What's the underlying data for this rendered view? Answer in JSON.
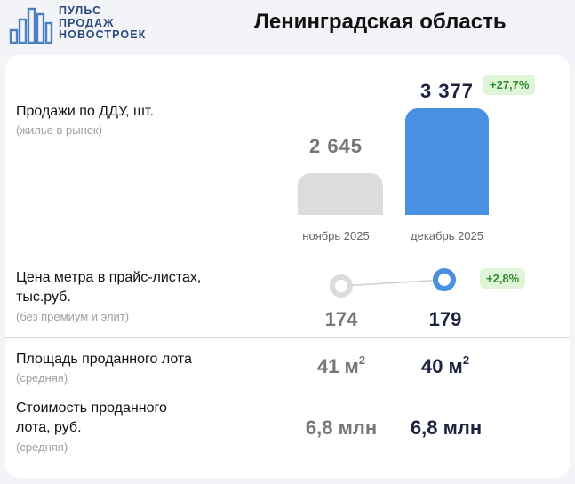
{
  "logo": {
    "line1": "ПУЛЬС",
    "line2": "ПРОДАЖ",
    "line3": "НОВОСТРОЕК"
  },
  "title": "Ленинградская область",
  "colors": {
    "prev_bar": "#dcdcdc",
    "curr_bar": "#4a90e2",
    "badge_bg": "#dff5d8",
    "badge_text": "#2f8a2f",
    "dark_value": "#1c2240"
  },
  "sales": {
    "label": "Продажи по ДДУ, шт.",
    "sublabel": "(жилье в рынок)",
    "prev_value": "2 645",
    "curr_value": "3 377",
    "prev_month": "ноябрь 2025",
    "curr_month": "декабрь 2025",
    "change": "+27,7%"
  },
  "chart_data": {
    "type": "bar",
    "categories": [
      "ноябрь 2025",
      "декабрь 2025"
    ],
    "values": [
      2645,
      3377
    ],
    "title": "Продажи по ДДУ, шт."
  },
  "price": {
    "label_line1": "Цена метра в прайс-листах,",
    "label_line2": "тыс.руб.",
    "sublabel": "(без премиум и элит)",
    "prev_value": "174",
    "curr_value": "179",
    "change": "+2,8%"
  },
  "area": {
    "label": "Площадь проданного лота",
    "sublabel": "(средняя)",
    "prev_value": "41 м",
    "curr_value": "40 м",
    "unit_sup": "2"
  },
  "cost": {
    "label_line1": "Стоимость проданного",
    "label_line2": "лота, руб.",
    "sublabel": "(средняя)",
    "prev_value": "6,8 млн",
    "curr_value": "6,8 млн"
  }
}
